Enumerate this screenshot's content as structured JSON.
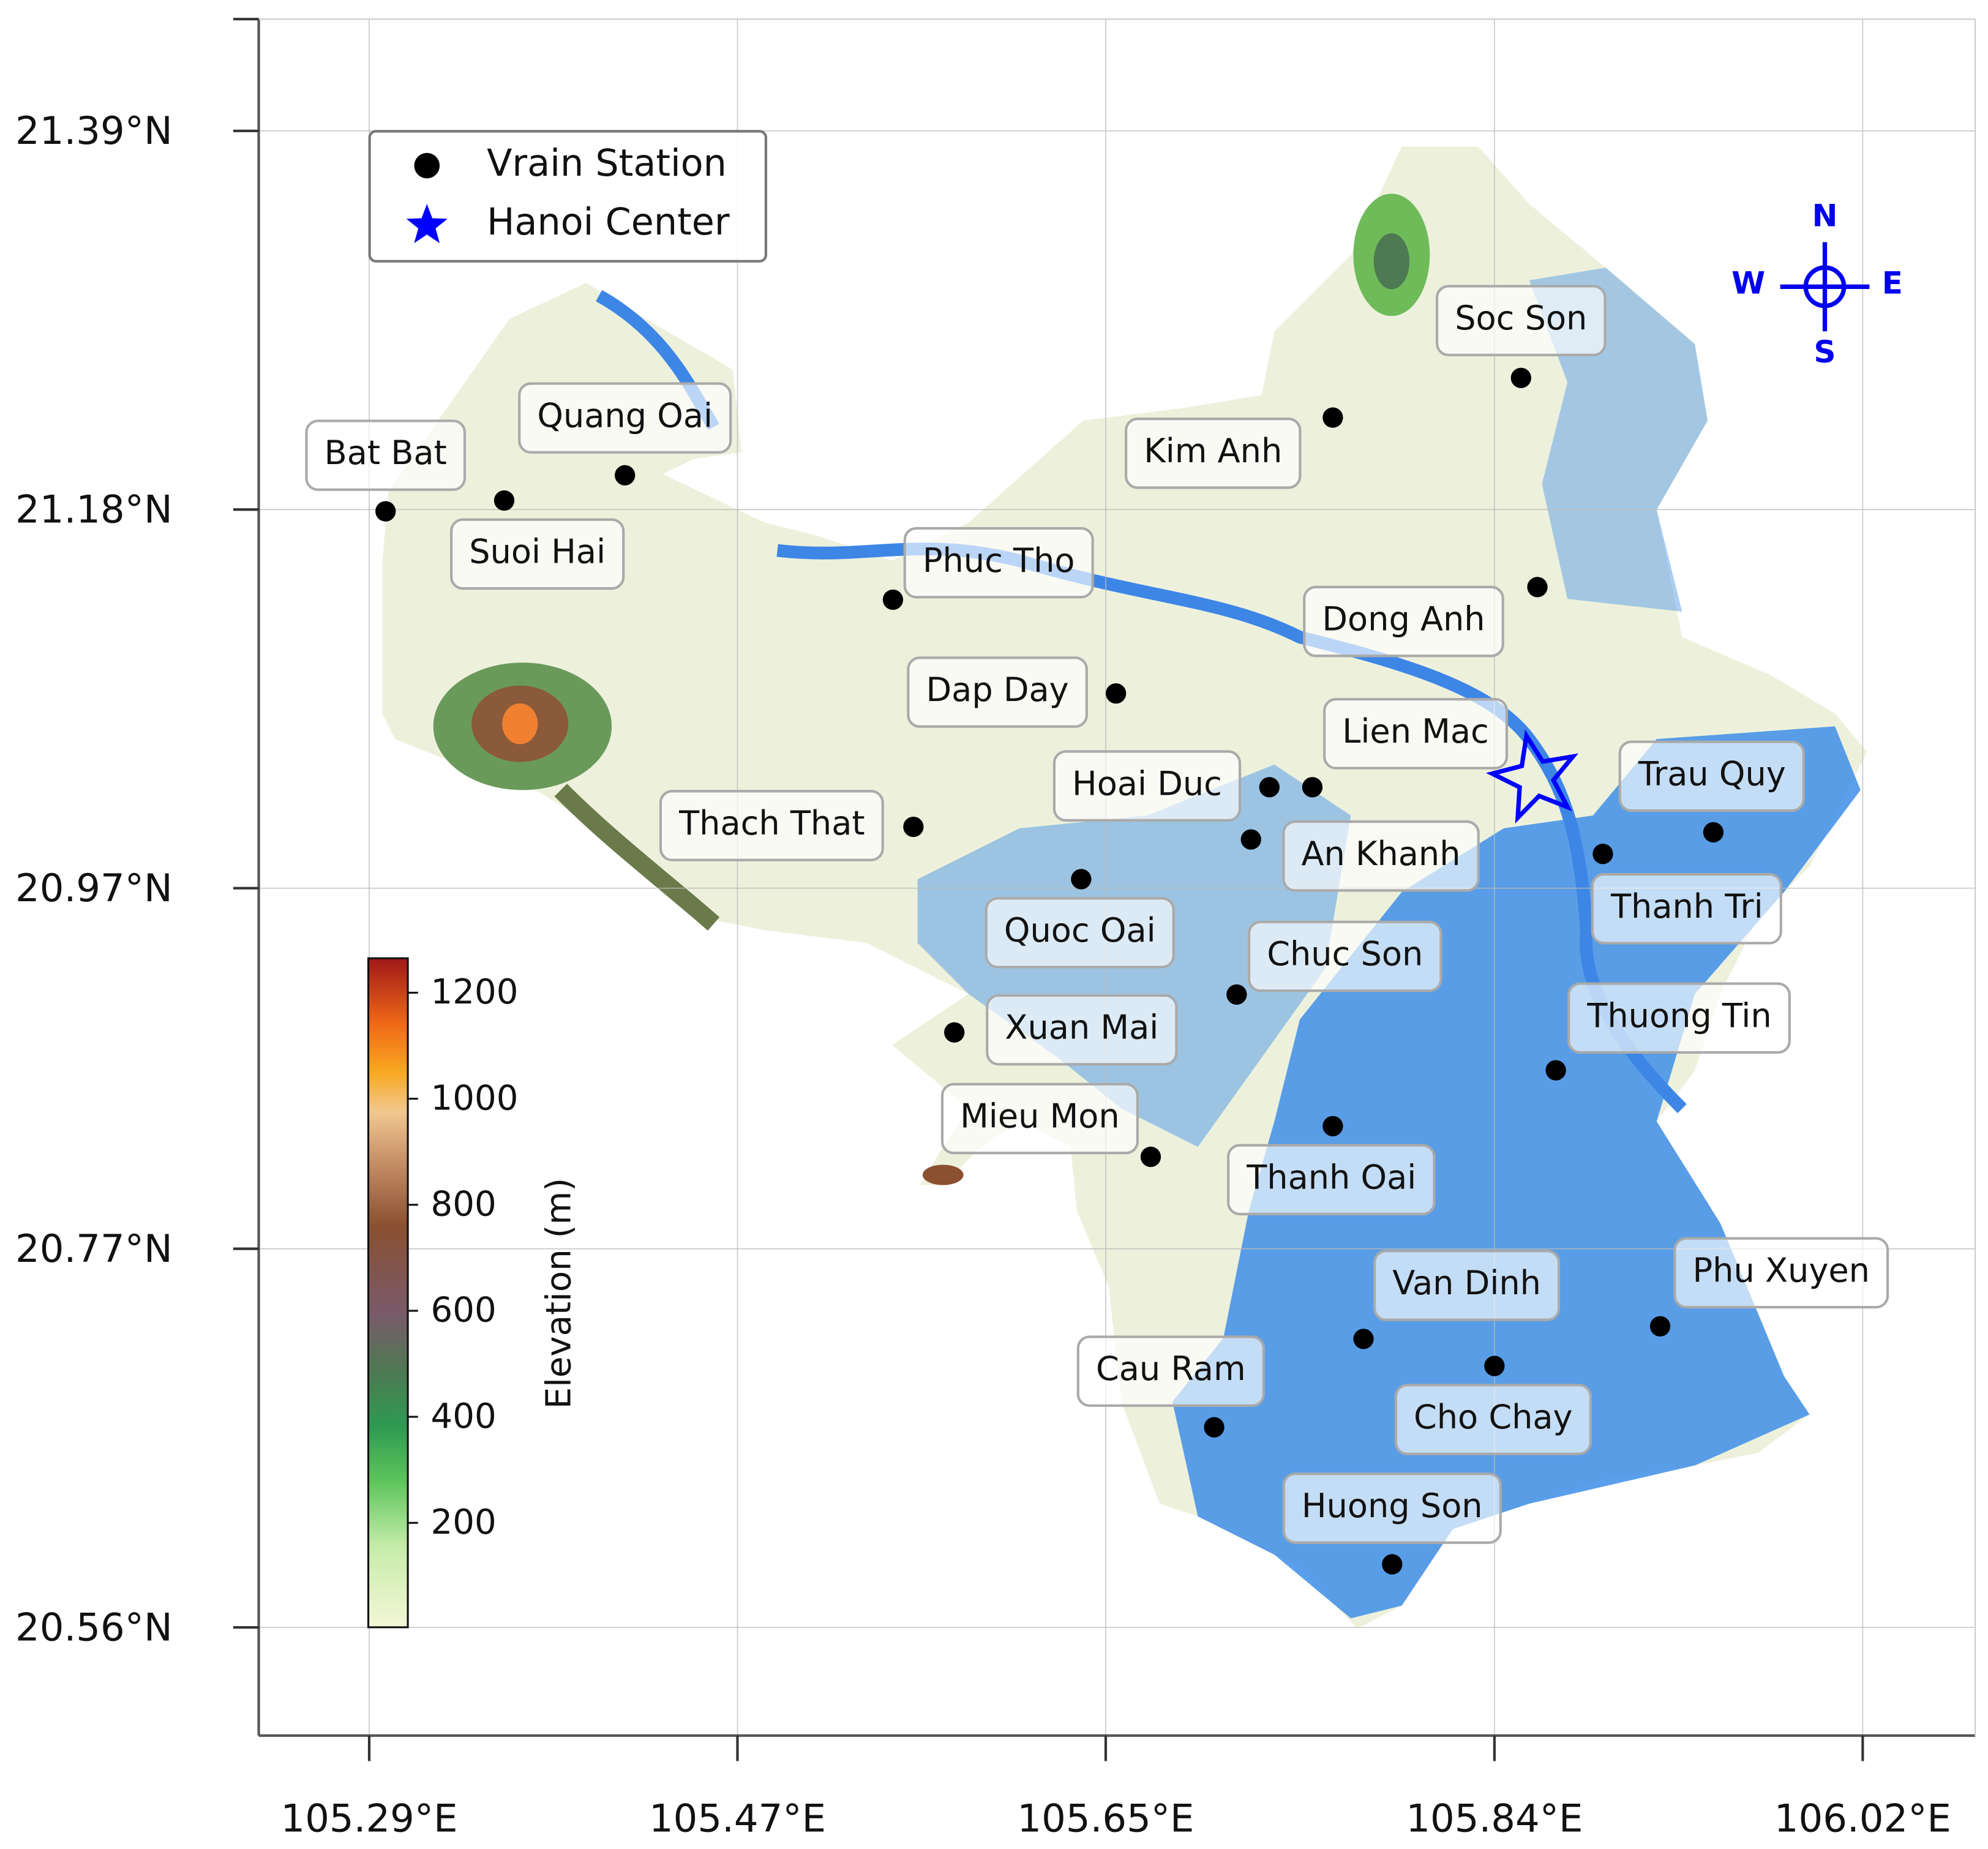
{
  "map": {
    "xlim": [
      105.236,
      106.075
    ],
    "ylim": [
      20.5,
      21.452
    ],
    "xticks": [
      {
        "value": 105.29,
        "label": "105.29°E"
      },
      {
        "value": 105.47,
        "label": "105.47°E"
      },
      {
        "value": 105.65,
        "label": "105.65°E"
      },
      {
        "value": 105.84,
        "label": "105.84°E"
      },
      {
        "value": 106.02,
        "label": "106.02°E"
      }
    ],
    "yticks": [
      {
        "value": 20.56,
        "label": "20.56°N"
      },
      {
        "value": 20.77,
        "label": "20.77°N"
      },
      {
        "value": 20.97,
        "label": "20.97°N"
      },
      {
        "value": 21.18,
        "label": "21.18°N"
      },
      {
        "value": 21.39,
        "label": "21.39°N"
      }
    ],
    "grid": true,
    "legend": [
      {
        "label": "Vrain Station",
        "color": "#000000"
      },
      {
        "label": "Hanoi Center",
        "color": "#0000ff"
      }
    ],
    "stations": [
      {
        "name": "Bat Bat",
        "lon": 105.298,
        "lat": 21.179
      },
      {
        "name": "Quang Oai",
        "lon": 105.415,
        "lat": 21.199
      },
      {
        "name": "Suoi Hai",
        "lon": 105.356,
        "lat": 21.185
      },
      {
        "name": "Phuc Tho",
        "lon": 105.546,
        "lat": 21.13
      },
      {
        "name": "Dap Day",
        "lon": 105.655,
        "lat": 21.078
      },
      {
        "name": "Thach That",
        "lon": 105.556,
        "lat": 21.004
      },
      {
        "name": "Quoc Oai",
        "lon": 105.638,
        "lat": 20.975
      },
      {
        "name": "Xuan Mai",
        "lon": 105.576,
        "lat": 20.89
      },
      {
        "name": "Mieu Mon",
        "lon": 105.672,
        "lat": 20.821
      },
      {
        "name": "Hoai Duc",
        "lon": 105.73,
        "lat": 21.026
      },
      {
        "name": "Lien Mac",
        "lon": 105.751,
        "lat": 21.026
      },
      {
        "name": "An Khanh",
        "lon": 105.721,
        "lat": 20.997
      },
      {
        "name": "Chuc Son",
        "lon": 105.714,
        "lat": 20.911
      },
      {
        "name": "Thanh Oai",
        "lon": 105.761,
        "lat": 20.838
      },
      {
        "name": "Kim Anh",
        "lon": 105.761,
        "lat": 21.231
      },
      {
        "name": "Soc Son",
        "lon": 105.853,
        "lat": 21.253
      },
      {
        "name": "Dong Anh",
        "lon": 105.861,
        "lat": 21.137
      },
      {
        "name": "Thanh Tri",
        "lon": 105.893,
        "lat": 20.989
      },
      {
        "name": "Trau Quy",
        "lon": 105.947,
        "lat": 21.001
      },
      {
        "name": "Thuong Tin",
        "lon": 105.87,
        "lat": 20.869
      },
      {
        "name": "Phu Xuyen",
        "lon": 105.921,
        "lat": 20.727
      },
      {
        "name": "Van Dinh",
        "lon": 105.776,
        "lat": 20.72
      },
      {
        "name": "Cho Chay",
        "lon": 105.84,
        "lat": 20.705
      },
      {
        "name": "Cau Ram",
        "lon": 105.703,
        "lat": 20.671
      },
      {
        "name": "Huong Son",
        "lon": 105.79,
        "lat": 20.595
      }
    ],
    "center": {
      "lon": 105.86,
      "lat": 21.031
    },
    "colorbar": {
      "label": "Elevation (m)",
      "lim": [
        3,
        1265
      ],
      "ticks": [
        200,
        400,
        600,
        800,
        1000,
        1200
      ]
    },
    "compass": {
      "n": "N",
      "e": "E",
      "s": "S",
      "w": "W"
    }
  }
}
